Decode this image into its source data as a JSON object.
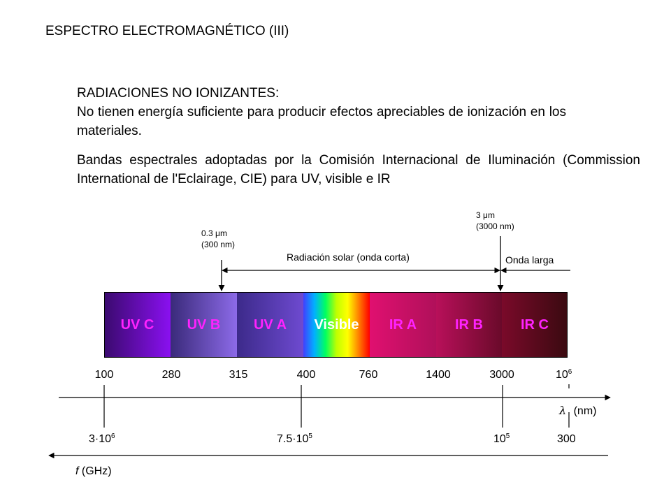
{
  "title": "ESPECTRO ELECTROMAGNÉTICO (III)",
  "no_ionizantes": {
    "heading": "RADIACIONES NO IONIZANTES:",
    "text": "No tienen energía suficiente para producir efectos apreciables de ionización en los materiales."
  },
  "cie_text": "Bandas espectrales adoptadas por la Comisión Internacional de Iluminación (Commission International de l'Eclairage, CIE) para UV, visible e IR",
  "markers": {
    "uv": {
      "value": "0.3 ",
      "unit": "m",
      "nm": "(300 nm)"
    },
    "ir": {
      "value": "3 ",
      "unit": "m",
      "nm": "(3000 nm)"
    },
    "mu": "μ"
  },
  "ranges": {
    "solar": "Radiación solar (onda corta)",
    "long": "Onda larga"
  },
  "bands": [
    {
      "label": "UV C",
      "text_color": "#ff00ff"
    },
    {
      "label": "UV B",
      "text_color": "#ff00ff"
    },
    {
      "label": "UV A",
      "text_color": "#ff00ff"
    },
    {
      "label": "Visible",
      "text_color": "#ffffff"
    },
    {
      "label": "IR A",
      "text_color": "#ff00ff"
    },
    {
      "label": "IR B",
      "text_color": "#ff00ff"
    },
    {
      "label": "IR C",
      "text_color": "#ff00ff"
    }
  ],
  "wavelengths": [
    "100",
    "280",
    "315",
    "400",
    "760",
    "1400",
    "3000"
  ],
  "wavelength_last": {
    "base": "10",
    "exp": "6"
  },
  "lambda_axis": {
    "symbol": "λ",
    "unit": "(nm)"
  },
  "frequencies": {
    "f1": {
      "base": "3·10",
      "exp": "6"
    },
    "f2": {
      "base": "7.5·10",
      "exp": "5"
    },
    "f3": {
      "base": "10",
      "exp": "5"
    },
    "f4": "300"
  },
  "freq_axis": {
    "symbol": "f",
    "unit": " (GHz)"
  },
  "colors": {
    "uvc": "#5a0f9a",
    "uvb": "#5d40b0",
    "uva": "#5a3aa8",
    "ira": "#c0107a",
    "irb": "#a00a5c",
    "irc": "#7a0a2a"
  }
}
